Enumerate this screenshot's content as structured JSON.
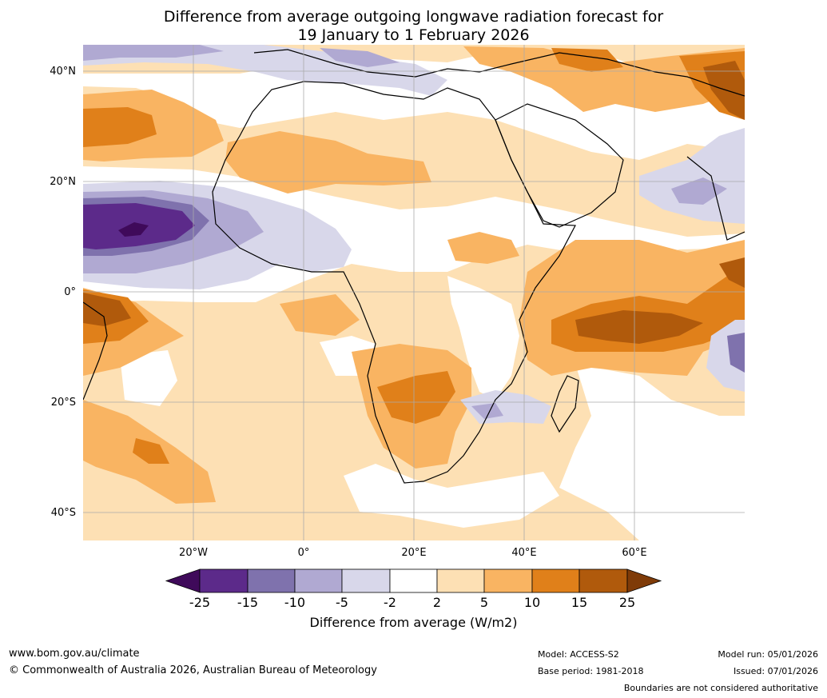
{
  "title": {
    "line1": "Difference from average outgoing longwave radiation forecast for",
    "line2": "19 January to 1 February 2026"
  },
  "map": {
    "lat_labels": [
      "40°N",
      "20°N",
      "0°",
      "20°S",
      "40°S"
    ],
    "lon_labels": [
      "20°W",
      "0°",
      "20°E",
      "40°E",
      "60°E"
    ],
    "colors": {
      "ocean_background": "#fde0b4",
      "land_neutral": "#ffffff",
      "grid": "#aaaaaa"
    }
  },
  "legend": {
    "ticks": [
      "-25",
      "-15",
      "-10",
      "-5",
      "-2",
      "2",
      "5",
      "10",
      "15",
      "25"
    ],
    "colors": [
      "#3f0a5a",
      "#5c2a8a",
      "#7f72ad",
      "#b0a9d2",
      "#d8d7ea",
      "#ffffff",
      "#fde0b4",
      "#f9b462",
      "#e0801a",
      "#b05a0c",
      "#7f3b08"
    ],
    "label": "Difference from average (W/m2)"
  },
  "footer": {
    "website": "www.bom.gov.au/climate",
    "copyright": "© Commonwealth of Australia 2026, Australian Bureau of Meteorology",
    "model": "Model: ACCESS-S2",
    "base_period": "Base period: 1981-2018",
    "model_run": "Model run: 05/01/2026",
    "issued": "Issued: 07/01/2026",
    "disclaimer": "Boundaries are not considered authoritative"
  }
}
